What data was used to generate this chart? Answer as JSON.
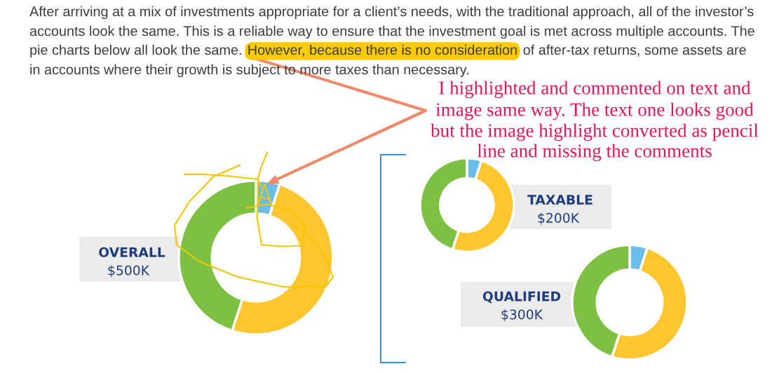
{
  "chart_data": [
    {
      "type": "donut",
      "title": "OVERALL",
      "subtitle": "$500K",
      "categories": [
        null,
        null,
        null
      ],
      "values": [
        5,
        50,
        45
      ],
      "colors": [
        "#6bbde9",
        "#fdc62e",
        "#7cc142"
      ],
      "annotations": [
        "After arriving at a mix of investments appropriate for a client’s needs, with the traditional approach, all of the investor’s",
        "accounts look the same. This is a reliable way to ensure that the investment goal is met across multiple accounts. The",
        "pie charts below all look the same.",
        "However, because there is no consideration",
        "of after-tax returns, some assets are",
        "in accounts where their growth is subject to more taxes than necessary.",
        "I highlighted and commented on text and",
        "image same way. The text one looks good",
        "but the image highlight converted as pencil",
        "line and missing the comments"
      ]
    },
    {
      "type": "donut",
      "title": "TAXABLE",
      "subtitle": "$200K",
      "categories": [
        null,
        null,
        null
      ],
      "values": [
        5,
        50,
        45
      ],
      "colors": [
        "#6bbde9",
        "#fdc62e",
        "#7cc142"
      ]
    },
    {
      "type": "donut",
      "title": "QUALIFIED",
      "subtitle": "$300K",
      "categories": [
        null,
        null,
        null
      ],
      "values": [
        5,
        50,
        45
      ],
      "colors": [
        "#6bbde9",
        "#fdc62e",
        "#7cc142"
      ]
    }
  ]
}
